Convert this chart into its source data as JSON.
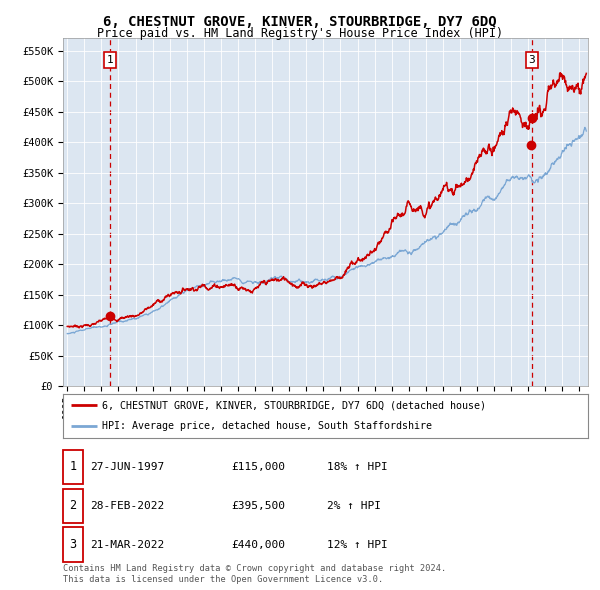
{
  "title": "6, CHESTNUT GROVE, KINVER, STOURBRIDGE, DY7 6DQ",
  "subtitle": "Price paid vs. HM Land Registry's House Price Index (HPI)",
  "fig_bg_color": "#ffffff",
  "plot_bg_color": "#dce6f1",
  "red_line_color": "#cc0000",
  "blue_line_color": "#7ba7d4",
  "dashed_line_color": "#cc0000",
  "sale1_date_num": 1997.49,
  "sale1_price": 115000,
  "sale2_date_num": 2022.16,
  "sale2_price": 395500,
  "sale3_date_num": 2022.22,
  "sale3_price": 440000,
  "xmin": 1994.75,
  "xmax": 2025.5,
  "ymin": 0,
  "ymax": 570000,
  "yticks": [
    0,
    50000,
    100000,
    150000,
    200000,
    250000,
    300000,
    350000,
    400000,
    450000,
    500000,
    550000
  ],
  "ytick_labels": [
    "£0",
    "£50K",
    "£100K",
    "£150K",
    "£200K",
    "£250K",
    "£300K",
    "£350K",
    "£400K",
    "£450K",
    "£500K",
    "£550K"
  ],
  "xticks": [
    1995,
    1996,
    1997,
    1998,
    1999,
    2000,
    2001,
    2002,
    2003,
    2004,
    2005,
    2006,
    2007,
    2008,
    2009,
    2010,
    2011,
    2012,
    2013,
    2014,
    2015,
    2016,
    2017,
    2018,
    2019,
    2020,
    2021,
    2022,
    2023,
    2024,
    2025
  ],
  "legend1_label": "6, CHESTNUT GROVE, KINVER, STOURBRIDGE, DY7 6DQ (detached house)",
  "legend2_label": "HPI: Average price, detached house, South Staffordshire",
  "table_rows": [
    [
      "1",
      "27-JUN-1997",
      "£115,000",
      "18% ↑ HPI"
    ],
    [
      "2",
      "28-FEB-2022",
      "£395,500",
      "2% ↑ HPI"
    ],
    [
      "3",
      "21-MAR-2022",
      "£440,000",
      "12% ↑ HPI"
    ]
  ],
  "footer1": "Contains HM Land Registry data © Crown copyright and database right 2024.",
  "footer2": "This data is licensed under the Open Government Licence v3.0."
}
